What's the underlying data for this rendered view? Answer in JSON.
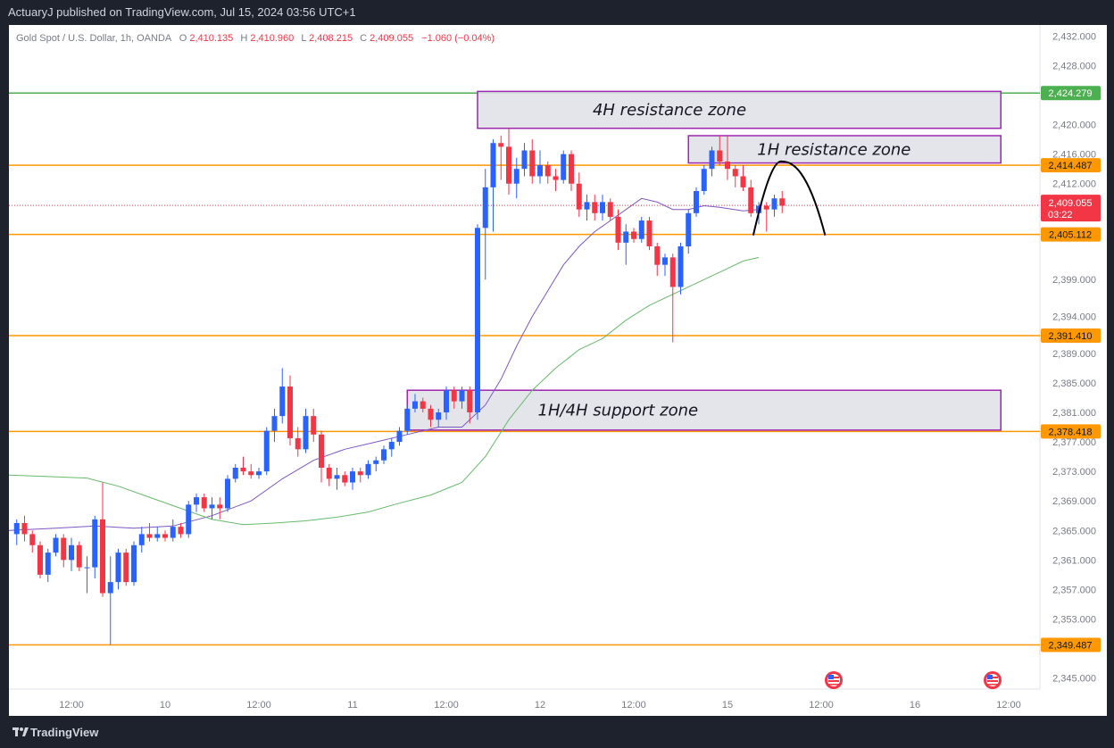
{
  "header": {
    "publisher_line": "ActuaryJ published on TradingView.com, Jul 15, 2024 03:56 UTC+1"
  },
  "footer": {
    "brand": "TradingView"
  },
  "colors": {
    "background": "#ffffff",
    "up_candle": "#2962ff",
    "down_candle": "#f23645",
    "level_orange": "#ff9800",
    "level_green": "#4caf50",
    "zone_border": "#9c27b0",
    "zone_fill": "#e1e2e8",
    "ma_fast": "#7e57c2",
    "ma_slow": "#66bb6a"
  },
  "chart_data": {
    "type": "candlestick",
    "symbol_line": {
      "name": "Gold Spot / U.S. Dollar, 1h, OANDA",
      "o_label": "O",
      "o": "2,410.135",
      "h_label": "H",
      "h": "2,410.960",
      "l_label": "L",
      "l": "2,408.215",
      "c_label": "C",
      "c": "2,409.055",
      "change": "−1.060 (−0.04%)"
    },
    "y_axis": {
      "range": [
        2343.5,
        2433.5
      ],
      "ticks": [
        "2,432.000",
        "2,428.000",
        "2,420.000",
        "2,416.000",
        "2,412.000",
        "2,399.000",
        "2,394.000",
        "2,389.000",
        "2,385.000",
        "2,381.000",
        "2,377.000",
        "2,373.000",
        "2,369.000",
        "2,365.000",
        "2,361.000",
        "2,357.000",
        "2,353.000",
        "2,345.000"
      ]
    },
    "x_axis": {
      "index_range": [
        -1,
        103
      ],
      "ticks": [
        {
          "label": "12:00",
          "index": 7
        },
        {
          "label": "10",
          "index": 19
        },
        {
          "label": "12:00",
          "index": 31
        },
        {
          "label": "11",
          "index": 43
        },
        {
          "label": "12:00",
          "index": 55
        },
        {
          "label": "12",
          "index": 67
        },
        {
          "label": "12:00",
          "index": 79
        },
        {
          "label": "15",
          "index": 91
        },
        {
          "label": "12:00",
          "index": 103
        },
        {
          "label": "16",
          "index": 115
        },
        {
          "label": "12:00",
          "index": 127
        }
      ]
    },
    "price_levels": [
      {
        "label": "2,424.279",
        "value": 2424.279,
        "color": "#4caf50"
      },
      {
        "label": "2,414.487",
        "value": 2414.487,
        "color": "#ff9800"
      },
      {
        "label": "2,405.112",
        "value": 2405.112,
        "color": "#ff9800"
      },
      {
        "label": "2,391.410",
        "value": 2391.41,
        "color": "#ff9800"
      },
      {
        "label": "2,378.418",
        "value": 2378.418,
        "color": "#ff9800"
      },
      {
        "label": "2,349.487",
        "value": 2349.487,
        "color": "#ff9800"
      }
    ],
    "current_price": {
      "label": "2,409.055",
      "countdown": "03:22",
      "value": 2409.055
    },
    "zones": [
      {
        "label": "4H resistance zone",
        "from_index": 59,
        "to_index": 126,
        "top": 2424.5,
        "bottom": 2419.5
      },
      {
        "label": "1H resistance zone",
        "from_index": 86,
        "to_index": 126,
        "top": 2418.5,
        "bottom": 2414.8
      },
      {
        "label": "1H/4H support zone",
        "from_index": 50,
        "to_index": 126,
        "top": 2384.0,
        "bottom": 2378.6
      }
    ],
    "candles": [
      {
        "o": 2364.5,
        "h": 2366.5,
        "l": 2363.0,
        "c": 2366.0
      },
      {
        "o": 2366.0,
        "h": 2367.0,
        "l": 2363.5,
        "c": 2364.5
      },
      {
        "o": 2364.5,
        "h": 2365.0,
        "l": 2362.0,
        "c": 2363.0
      },
      {
        "o": 2363.0,
        "h": 2363.5,
        "l": 2358.5,
        "c": 2359.0
      },
      {
        "o": 2359.0,
        "h": 2362.5,
        "l": 2358.0,
        "c": 2362.0
      },
      {
        "o": 2362.0,
        "h": 2364.5,
        "l": 2361.5,
        "c": 2364.0
      },
      {
        "o": 2364.0,
        "h": 2364.5,
        "l": 2360.0,
        "c": 2361.0
      },
      {
        "o": 2361.0,
        "h": 2364.0,
        "l": 2359.5,
        "c": 2363.0
      },
      {
        "o": 2363.0,
        "h": 2363.5,
        "l": 2359.5,
        "c": 2360.0
      },
      {
        "o": 2360.0,
        "h": 2361.5,
        "l": 2356.5,
        "c": 2360.0
      },
      {
        "o": 2360.0,
        "h": 2367.0,
        "l": 2358.5,
        "c": 2366.5
      },
      {
        "o": 2366.5,
        "h": 2371.5,
        "l": 2356.0,
        "c": 2356.5
      },
      {
        "o": 2356.5,
        "h": 2361.5,
        "l": 2349.5,
        "c": 2358.0
      },
      {
        "o": 2358.0,
        "h": 2362.5,
        "l": 2357.0,
        "c": 2362.0
      },
      {
        "o": 2362.0,
        "h": 2362.5,
        "l": 2357.5,
        "c": 2358.0
      },
      {
        "o": 2358.0,
        "h": 2363.5,
        "l": 2357.5,
        "c": 2363.0
      },
      {
        "o": 2363.0,
        "h": 2365.5,
        "l": 2362.0,
        "c": 2364.5
      },
      {
        "o": 2364.5,
        "h": 2366.0,
        "l": 2363.5,
        "c": 2364.0
      },
      {
        "o": 2364.0,
        "h": 2365.5,
        "l": 2363.5,
        "c": 2364.5
      },
      {
        "o": 2364.5,
        "h": 2365.0,
        "l": 2363.5,
        "c": 2364.0
      },
      {
        "o": 2364.0,
        "h": 2366.5,
        "l": 2363.5,
        "c": 2365.5
      },
      {
        "o": 2365.5,
        "h": 2366.0,
        "l": 2364.0,
        "c": 2364.5
      },
      {
        "o": 2364.5,
        "h": 2369.0,
        "l": 2364.0,
        "c": 2368.5
      },
      {
        "o": 2368.5,
        "h": 2370.0,
        "l": 2367.5,
        "c": 2369.5
      },
      {
        "o": 2369.5,
        "h": 2370.0,
        "l": 2367.5,
        "c": 2368.0
      },
      {
        "o": 2368.0,
        "h": 2369.5,
        "l": 2366.5,
        "c": 2368.5
      },
      {
        "o": 2368.5,
        "h": 2369.5,
        "l": 2366.5,
        "c": 2368.0
      },
      {
        "o": 2368.0,
        "h": 2372.5,
        "l": 2367.5,
        "c": 2372.0
      },
      {
        "o": 2372.0,
        "h": 2374.0,
        "l": 2371.5,
        "c": 2373.5
      },
      {
        "o": 2373.5,
        "h": 2375.0,
        "l": 2372.5,
        "c": 2373.0
      },
      {
        "o": 2373.0,
        "h": 2374.0,
        "l": 2372.0,
        "c": 2372.5
      },
      {
        "o": 2372.5,
        "h": 2373.5,
        "l": 2372.0,
        "c": 2373.0
      },
      {
        "o": 2373.0,
        "h": 2379.0,
        "l": 2372.5,
        "c": 2378.5
      },
      {
        "o": 2378.5,
        "h": 2381.5,
        "l": 2377.0,
        "c": 2380.5
      },
      {
        "o": 2380.5,
        "h": 2387.0,
        "l": 2379.5,
        "c": 2384.5
      },
      {
        "o": 2384.5,
        "h": 2386.0,
        "l": 2376.5,
        "c": 2377.5
      },
      {
        "o": 2377.5,
        "h": 2379.0,
        "l": 2375.0,
        "c": 2376.0
      },
      {
        "o": 2376.0,
        "h": 2381.5,
        "l": 2375.5,
        "c": 2380.5
      },
      {
        "o": 2380.5,
        "h": 2381.5,
        "l": 2377.0,
        "c": 2378.0
      },
      {
        "o": 2378.0,
        "h": 2378.5,
        "l": 2371.5,
        "c": 2373.5
      },
      {
        "o": 2373.5,
        "h": 2374.0,
        "l": 2371.0,
        "c": 2372.0
      },
      {
        "o": 2372.0,
        "h": 2373.5,
        "l": 2370.5,
        "c": 2372.5
      },
      {
        "o": 2372.5,
        "h": 2373.0,
        "l": 2371.0,
        "c": 2371.5
      },
      {
        "o": 2371.5,
        "h": 2373.5,
        "l": 2370.5,
        "c": 2373.0
      },
      {
        "o": 2373.0,
        "h": 2373.5,
        "l": 2371.5,
        "c": 2372.5
      },
      {
        "o": 2372.5,
        "h": 2374.5,
        "l": 2372.0,
        "c": 2374.0
      },
      {
        "o": 2374.0,
        "h": 2375.0,
        "l": 2373.0,
        "c": 2374.5
      },
      {
        "o": 2374.5,
        "h": 2376.5,
        "l": 2374.0,
        "c": 2376.0
      },
      {
        "o": 2376.0,
        "h": 2377.5,
        "l": 2375.0,
        "c": 2377.0
      },
      {
        "o": 2377.0,
        "h": 2379.0,
        "l": 2376.5,
        "c": 2378.5
      },
      {
        "o": 2378.5,
        "h": 2382.0,
        "l": 2378.0,
        "c": 2381.5
      },
      {
        "o": 2381.5,
        "h": 2383.5,
        "l": 2381.0,
        "c": 2382.5
      },
      {
        "o": 2382.5,
        "h": 2383.0,
        "l": 2381.0,
        "c": 2381.5
      },
      {
        "o": 2381.5,
        "h": 2382.0,
        "l": 2379.0,
        "c": 2380.0
      },
      {
        "o": 2380.0,
        "h": 2381.5,
        "l": 2379.0,
        "c": 2381.0
      },
      {
        "o": 2381.0,
        "h": 2384.5,
        "l": 2380.0,
        "c": 2384.0
      },
      {
        "o": 2384.0,
        "h": 2384.5,
        "l": 2381.5,
        "c": 2382.5
      },
      {
        "o": 2382.5,
        "h": 2384.5,
        "l": 2381.5,
        "c": 2384.0
      },
      {
        "o": 2384.0,
        "h": 2384.5,
        "l": 2379.5,
        "c": 2381.0
      },
      {
        "o": 2381.0,
        "h": 2406.5,
        "l": 2380.0,
        "c": 2406.0
      },
      {
        "o": 2406.0,
        "h": 2414.0,
        "l": 2399.0,
        "c": 2411.5
      },
      {
        "o": 2411.5,
        "h": 2418.0,
        "l": 2405.5,
        "c": 2417.5
      },
      {
        "o": 2417.5,
        "h": 2418.5,
        "l": 2412.5,
        "c": 2417.0
      },
      {
        "o": 2417.0,
        "h": 2419.5,
        "l": 2410.5,
        "c": 2412.0
      },
      {
        "o": 2412.0,
        "h": 2415.5,
        "l": 2410.0,
        "c": 2414.0
      },
      {
        "o": 2414.0,
        "h": 2417.5,
        "l": 2413.0,
        "c": 2416.5
      },
      {
        "o": 2416.5,
        "h": 2418.0,
        "l": 2412.0,
        "c": 2413.0
      },
      {
        "o": 2413.0,
        "h": 2416.5,
        "l": 2412.0,
        "c": 2414.5
      },
      {
        "o": 2414.5,
        "h": 2415.0,
        "l": 2412.0,
        "c": 2413.0
      },
      {
        "o": 2413.0,
        "h": 2414.0,
        "l": 2411.0,
        "c": 2412.5
      },
      {
        "o": 2412.5,
        "h": 2416.5,
        "l": 2412.0,
        "c": 2416.0
      },
      {
        "o": 2416.0,
        "h": 2416.5,
        "l": 2411.0,
        "c": 2412.0
      },
      {
        "o": 2412.0,
        "h": 2413.5,
        "l": 2407.5,
        "c": 2408.5
      },
      {
        "o": 2408.5,
        "h": 2410.5,
        "l": 2407.0,
        "c": 2409.5
      },
      {
        "o": 2409.5,
        "h": 2410.5,
        "l": 2407.0,
        "c": 2408.0
      },
      {
        "o": 2408.0,
        "h": 2410.5,
        "l": 2407.0,
        "c": 2409.5
      },
      {
        "o": 2409.5,
        "h": 2410.0,
        "l": 2407.0,
        "c": 2407.5
      },
      {
        "o": 2407.5,
        "h": 2408.5,
        "l": 2403.0,
        "c": 2404.0
      },
      {
        "o": 2404.0,
        "h": 2406.5,
        "l": 2401.0,
        "c": 2405.5
      },
      {
        "o": 2405.5,
        "h": 2406.0,
        "l": 2404.0,
        "c": 2404.5
      },
      {
        "o": 2404.5,
        "h": 2407.5,
        "l": 2404.0,
        "c": 2407.0
      },
      {
        "o": 2407.0,
        "h": 2407.5,
        "l": 2403.0,
        "c": 2403.5
      },
      {
        "o": 2403.5,
        "h": 2404.0,
        "l": 2399.5,
        "c": 2401.0
      },
      {
        "o": 2401.0,
        "h": 2402.5,
        "l": 2399.5,
        "c": 2402.0
      },
      {
        "o": 2402.0,
        "h": 2402.5,
        "l": 2390.5,
        "c": 2398.0
      },
      {
        "o": 2398.0,
        "h": 2404.0,
        "l": 2397.0,
        "c": 2403.5
      },
      {
        "o": 2403.5,
        "h": 2408.5,
        "l": 2402.5,
        "c": 2408.0
      },
      {
        "o": 2408.0,
        "h": 2411.5,
        "l": 2407.5,
        "c": 2411.0
      },
      {
        "o": 2411.0,
        "h": 2414.5,
        "l": 2410.5,
        "c": 2414.0
      },
      {
        "o": 2414.0,
        "h": 2417.0,
        "l": 2413.0,
        "c": 2416.5
      },
      {
        "o": 2416.5,
        "h": 2418.5,
        "l": 2414.5,
        "c": 2415.0
      },
      {
        "o": 2415.0,
        "h": 2418.5,
        "l": 2412.5,
        "c": 2414.0
      },
      {
        "o": 2414.0,
        "h": 2414.5,
        "l": 2411.5,
        "c": 2413.0
      },
      {
        "o": 2413.0,
        "h": 2414.5,
        "l": 2411.0,
        "c": 2411.5
      },
      {
        "o": 2411.5,
        "h": 2412.5,
        "l": 2407.5,
        "c": 2408.0
      },
      {
        "o": 2408.0,
        "h": 2409.5,
        "l": 2406.5,
        "c": 2409.0
      },
      {
        "o": 2409.0,
        "h": 2409.5,
        "l": 2405.5,
        "c": 2408.5
      },
      {
        "o": 2408.5,
        "h": 2410.5,
        "l": 2407.5,
        "c": 2410.0
      },
      {
        "o": 2410.0,
        "h": 2411.0,
        "l": 2408.0,
        "c": 2409.0
      }
    ],
    "ma_fast": [
      [
        -1,
        2365.0
      ],
      [
        5,
        2365.3
      ],
      [
        10,
        2365.6
      ],
      [
        15,
        2365.3
      ],
      [
        20,
        2365.6
      ],
      [
        25,
        2367.0
      ],
      [
        30,
        2369.0
      ],
      [
        34,
        2372.0
      ],
      [
        38,
        2374.5
      ],
      [
        42,
        2376.0
      ],
      [
        46,
        2377.0
      ],
      [
        50,
        2378.0
      ],
      [
        54,
        2379.0
      ],
      [
        57,
        2379.0
      ],
      [
        60,
        2382.0
      ],
      [
        62,
        2385.5
      ],
      [
        64,
        2390.0
      ],
      [
        66,
        2394.0
      ],
      [
        68,
        2397.5
      ],
      [
        70,
        2401.0
      ],
      [
        72,
        2403.5
      ],
      [
        74,
        2405.5
      ],
      [
        76,
        2407.0
      ],
      [
        78,
        2408.5
      ],
      [
        80,
        2410.0
      ],
      [
        82,
        2409.5
      ],
      [
        84,
        2408.5
      ],
      [
        86,
        2408.5
      ],
      [
        88,
        2409.0
      ],
      [
        90,
        2408.8
      ],
      [
        93,
        2408.3
      ],
      [
        95,
        2408.5
      ]
    ],
    "ma_slow": [
      [
        -1,
        2372.5
      ],
      [
        4,
        2372.3
      ],
      [
        9,
        2372.1
      ],
      [
        13,
        2371.0
      ],
      [
        17,
        2369.5
      ],
      [
        21,
        2368.0
      ],
      [
        25,
        2366.5
      ],
      [
        29,
        2365.8
      ],
      [
        33,
        2366.0
      ],
      [
        37,
        2366.3
      ],
      [
        41,
        2366.8
      ],
      [
        45,
        2367.5
      ],
      [
        49,
        2368.7
      ],
      [
        53,
        2369.8
      ],
      [
        57,
        2371.5
      ],
      [
        60,
        2375.0
      ],
      [
        63,
        2380.0
      ],
      [
        66,
        2384.0
      ],
      [
        69,
        2387.0
      ],
      [
        72,
        2389.5
      ],
      [
        75,
        2391.0
      ],
      [
        78,
        2393.5
      ],
      [
        81,
        2395.5
      ],
      [
        84,
        2397.0
      ],
      [
        87,
        2398.5
      ],
      [
        90,
        2400.0
      ],
      [
        93,
        2401.5
      ],
      [
        95,
        2402.0
      ]
    ],
    "projection": [
      [
        94.3,
        2405.0
      ],
      [
        95.5,
        2410.5
      ],
      [
        98,
        2415.0
      ],
      [
        100.5,
        2413.5
      ],
      [
        103.5,
        2405.0
      ]
    ]
  }
}
